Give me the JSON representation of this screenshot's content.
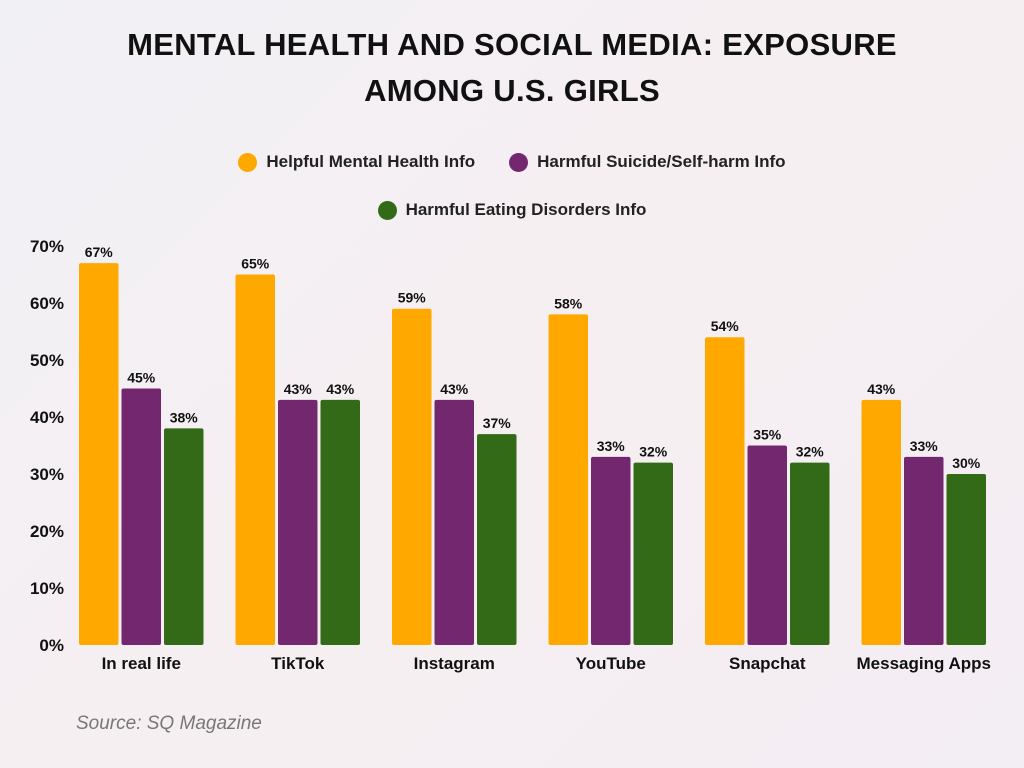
{
  "chart_data": {
    "type": "bar",
    "title": "MENTAL HEALTH AND SOCIAL MEDIA: EXPOSURE AMONG U.S. GIRLS",
    "title_lines": [
      "MENTAL HEALTH AND SOCIAL MEDIA: EXPOSURE",
      "AMONG U.S. GIRLS"
    ],
    "categories": [
      "In real life",
      "TikTok",
      "Instagram",
      "YouTube",
      "Snapchat",
      "Messaging Apps"
    ],
    "series": [
      {
        "name": "Helpful Mental Health Info",
        "color": "#FFA800",
        "values": [
          67,
          65,
          59,
          58,
          54,
          43
        ]
      },
      {
        "name": "Harmful Suicide/Self-harm Info",
        "color": "#73276F",
        "values": [
          45,
          43,
          43,
          33,
          35,
          33
        ]
      },
      {
        "name": "Harmful Eating Disorders Info",
        "color": "#336A17",
        "values": [
          38,
          43,
          37,
          32,
          32,
          30
        ]
      }
    ],
    "ylim": [
      0,
      70
    ],
    "yticks": [
      "0%",
      "10%",
      "20%",
      "30%",
      "40%",
      "50%",
      "60%",
      "70%"
    ],
    "value_suffix": "%",
    "legend_position": "top",
    "grid": false
  },
  "source": "Source: SQ Magazine"
}
